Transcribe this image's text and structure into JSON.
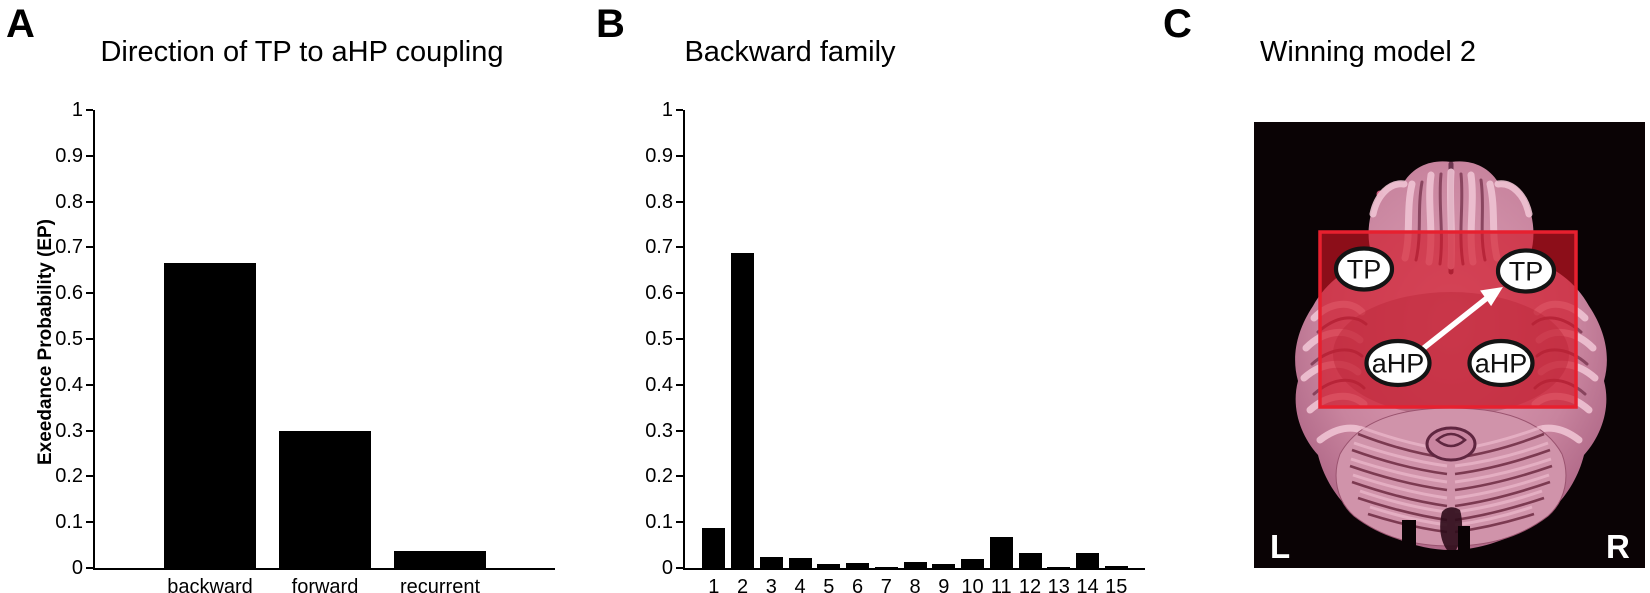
{
  "panels": {
    "A": {
      "letter": "A",
      "title": "Direction of TP to aHP coupling",
      "ylabel": "Exeedance Probability (EP)"
    },
    "B": {
      "letter": "B",
      "title": "Backward family"
    },
    "C": {
      "letter": "C",
      "title": "Winning model 2"
    }
  },
  "chart_data": [
    {
      "type": "bar",
      "panel": "A",
      "title": "Direction of TP to aHP coupling",
      "xlabel": "",
      "ylabel": "Exeedance Probability (EP)",
      "categories": [
        "backward",
        "forward",
        "recurrent"
      ],
      "values": [
        0.665,
        0.3,
        0.038
      ],
      "ylim": [
        0,
        1
      ],
      "yticks": [
        0,
        0.1,
        0.2,
        0.3,
        0.4,
        0.5,
        0.6,
        0.7,
        0.8,
        0.9,
        1
      ],
      "bar_color": "#000000",
      "grid": false,
      "legend": null
    },
    {
      "type": "bar",
      "panel": "B",
      "title": "Backward family",
      "xlabel": "",
      "ylabel": "",
      "categories": [
        "1",
        "2",
        "3",
        "4",
        "5",
        "6",
        "7",
        "8",
        "9",
        "10",
        "11",
        "12",
        "13",
        "14",
        "15"
      ],
      "values": [
        0.087,
        0.688,
        0.023,
        0.022,
        0.009,
        0.01,
        0.003,
        0.013,
        0.009,
        0.02,
        0.068,
        0.033,
        0.003,
        0.033,
        0.004
      ],
      "ylim": [
        0,
        1
      ],
      "yticks": [
        0,
        0.1,
        0.2,
        0.3,
        0.4,
        0.5,
        0.6,
        0.7,
        0.8,
        0.9,
        1
      ],
      "bar_color": "#000000",
      "grid": false,
      "legend": null
    }
  ],
  "panel_c": {
    "title": "Winning model 2",
    "nodes": [
      {
        "label": "TP",
        "position": "upper-left"
      },
      {
        "label": "TP",
        "position": "upper-right"
      },
      {
        "label": "aHP",
        "position": "lower-left"
      },
      {
        "label": "aHP",
        "position": "lower-right"
      }
    ],
    "arrow": {
      "from": "left aHP",
      "to": "right TP",
      "color": "#ffffff"
    },
    "orientation": {
      "left": "L",
      "right": "R"
    },
    "colors": {
      "overlay_fill": "#d01325",
      "overlay_border": "#e7202f",
      "node_fill": "#ffffff",
      "node_border": "#141414",
      "background": "#0a0305"
    }
  }
}
